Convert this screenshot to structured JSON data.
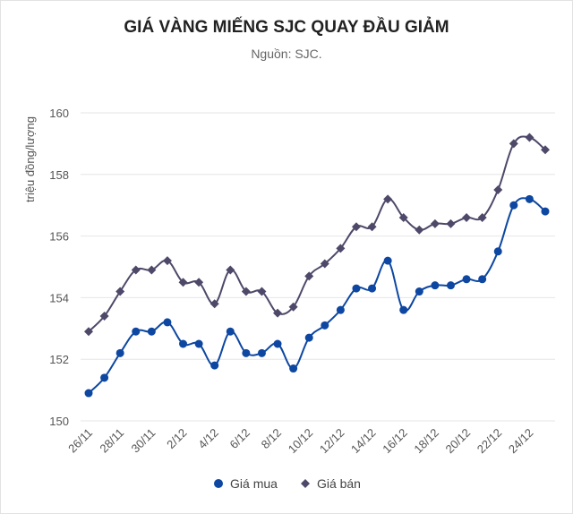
{
  "chart_data": {
    "type": "line",
    "title": "GIÁ VÀNG MIẾNG SJC QUAY ĐẦU GIẢM",
    "subtitle": "Nguồn: SJC.",
    "xlabel": "",
    "ylabel": "triệu đồng/lượng",
    "ylim": [
      150,
      160
    ],
    "yticks": [
      150,
      152,
      154,
      156,
      158,
      160
    ],
    "grid": true,
    "legend_position": "bottom-center",
    "x": [
      "26/11",
      "27/11",
      "28/11",
      "29/11",
      "30/11",
      "1/12",
      "2/12",
      "3/12",
      "4/12",
      "5/12",
      "6/12",
      "7/12",
      "8/12",
      "9/12",
      "10/12",
      "11/12",
      "12/12",
      "13/12",
      "14/12",
      "15/12",
      "16/12",
      "17/12",
      "18/12",
      "19/12",
      "20/12",
      "21/12",
      "22/12",
      "23/12",
      "24/12",
      "25/12"
    ],
    "xtick_labels": [
      "26/11",
      "28/11",
      "30/11",
      "2/12",
      "4/12",
      "6/12",
      "8/12",
      "10/12",
      "12/12",
      "14/12",
      "16/12",
      "18/12",
      "20/12",
      "22/12",
      "24/12"
    ],
    "series": [
      {
        "name": "Giá mua",
        "color": "#0d47a1",
        "marker": "circle",
        "values": [
          150.9,
          151.4,
          152.2,
          152.9,
          152.9,
          153.2,
          152.5,
          152.5,
          151.8,
          152.9,
          152.2,
          152.2,
          152.5,
          151.7,
          152.7,
          153.1,
          153.6,
          154.3,
          154.3,
          155.2,
          153.6,
          154.2,
          154.4,
          154.4,
          154.6,
          154.6,
          155.5,
          157.0,
          157.2,
          156.8
        ]
      },
      {
        "name": "Giá bán",
        "color": "#4e4869",
        "marker": "diamond",
        "values": [
          152.9,
          153.4,
          154.2,
          154.9,
          154.9,
          155.2,
          154.5,
          154.5,
          153.8,
          154.9,
          154.2,
          154.2,
          153.5,
          153.7,
          154.7,
          155.1,
          155.6,
          156.3,
          156.3,
          157.2,
          156.6,
          156.2,
          156.4,
          156.4,
          156.6,
          156.6,
          157.5,
          159.0,
          159.2,
          158.8
        ]
      }
    ]
  }
}
